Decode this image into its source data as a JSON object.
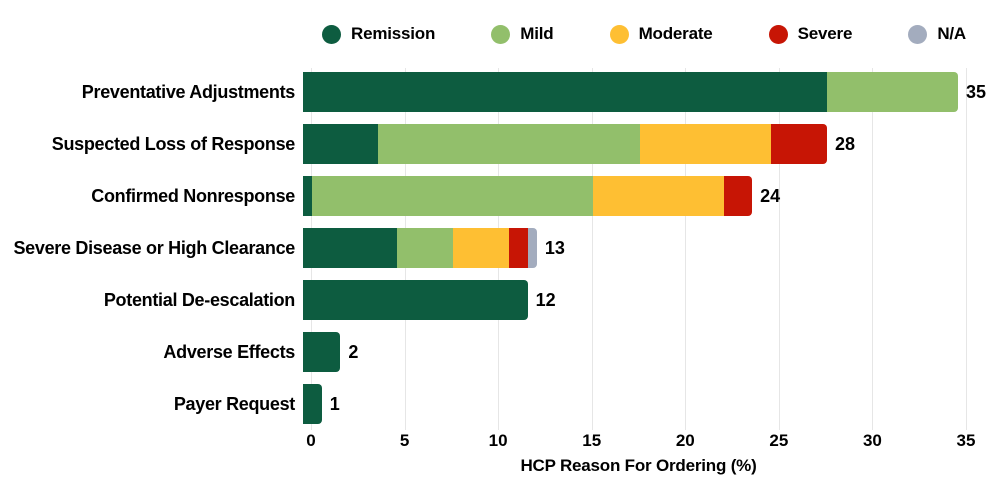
{
  "chart_data": {
    "type": "bar",
    "orientation": "horizontal",
    "stacked": true,
    "title": "",
    "xlabel": "HCP Reason For Ordering (%)",
    "ylabel": "",
    "xlim": [
      0,
      35
    ],
    "x_ticks": [
      0,
      5,
      10,
      15,
      20,
      25,
      30,
      35
    ],
    "grid": true,
    "legend_position": "top",
    "categories": [
      "Preventative Adjustments",
      "Suspected Loss of Response",
      "Confirmed Nonresponse",
      "Severe Disease or High Clearance",
      "Potential De-escalation",
      "Adverse Effects",
      "Payer Request"
    ],
    "series": [
      {
        "name": "Remission",
        "color": "#0d5c40",
        "values": [
          28,
          4,
          0.5,
          5,
          12,
          2,
          1
        ]
      },
      {
        "name": "Mild",
        "color": "#92bf6b",
        "values": [
          7,
          14,
          15,
          3,
          0,
          0,
          0
        ]
      },
      {
        "name": "Moderate",
        "color": "#febf33",
        "values": [
          0,
          7,
          7,
          3,
          0,
          0,
          0
        ]
      },
      {
        "name": "Severe",
        "color": "#c71505",
        "values": [
          0,
          3,
          1.5,
          1,
          0,
          0,
          0
        ]
      },
      {
        "name": "N/A",
        "color": "#a3acbe",
        "values": [
          0,
          0,
          0,
          0.5,
          0,
          0,
          0
        ]
      }
    ],
    "bar_total_labels": [
      "35",
      "28",
      "24",
      "13",
      "12",
      "2",
      "1"
    ],
    "gridline_color": "#e6e6e6"
  }
}
